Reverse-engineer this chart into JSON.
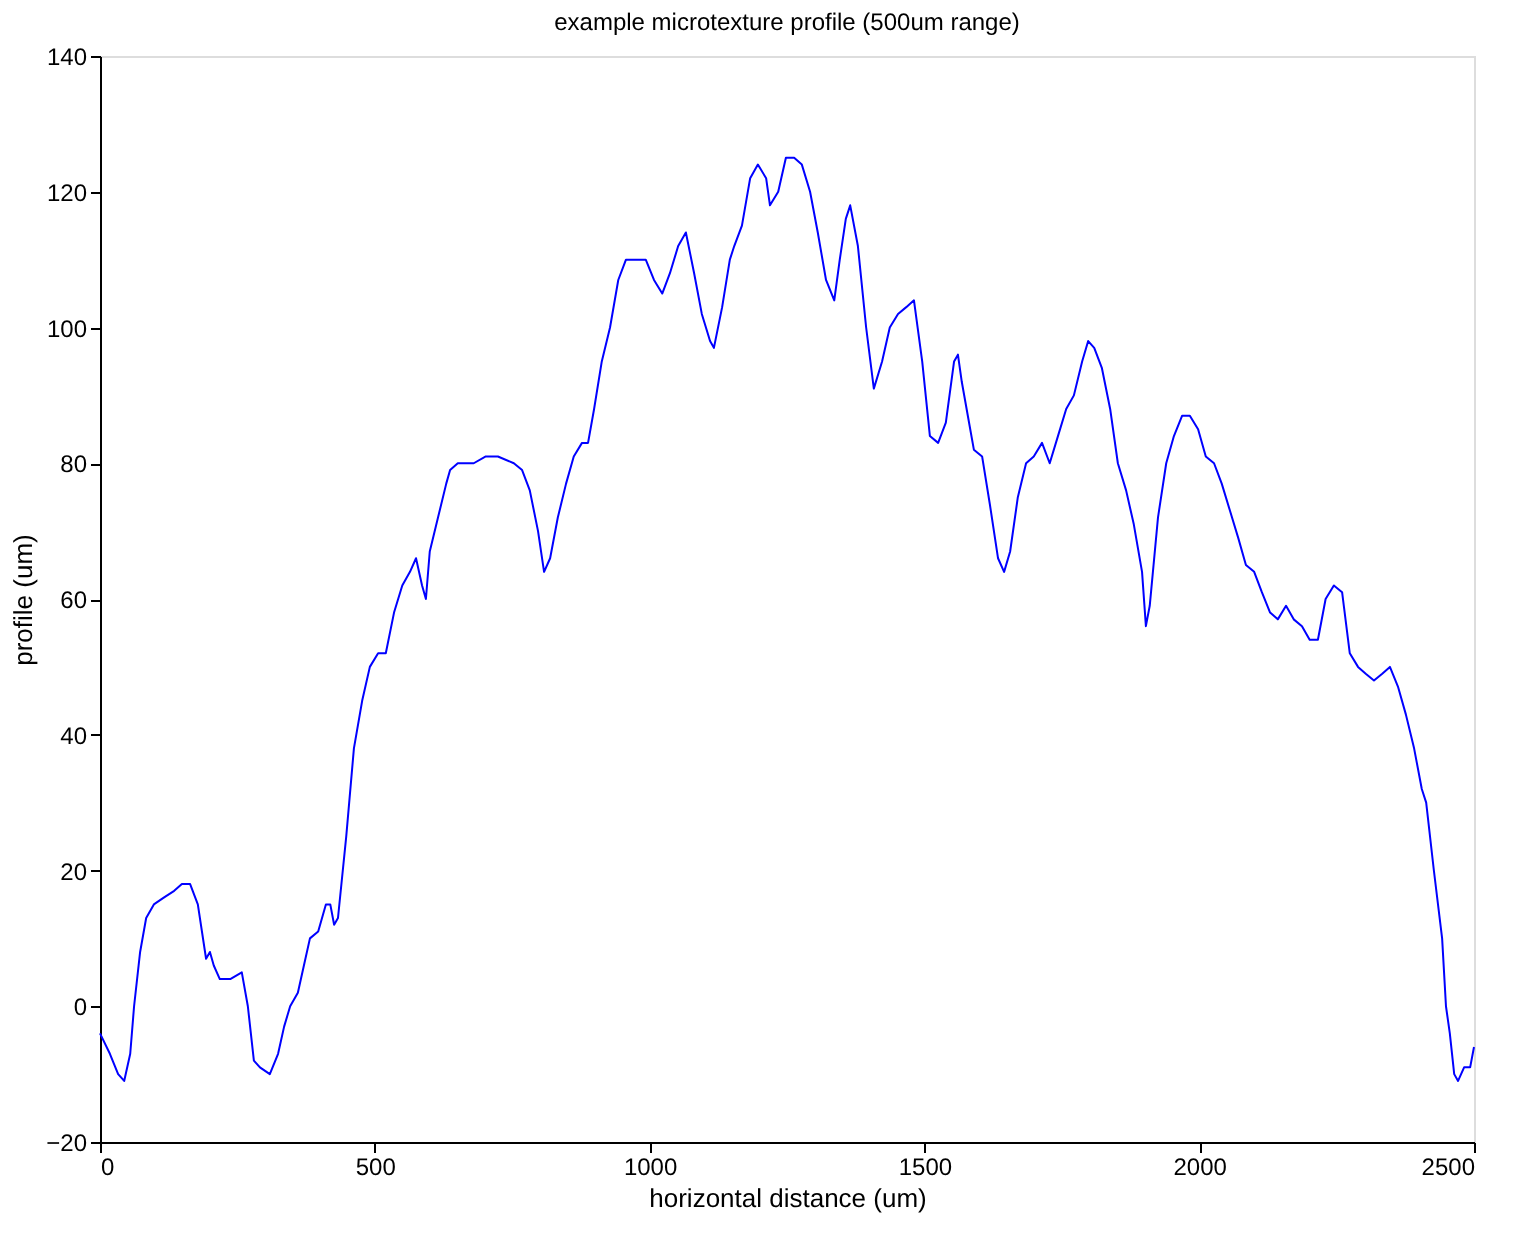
{
  "chart_data": {
    "type": "line",
    "title": "example microtexture profile (500um range)",
    "xlabel": "horizontal distance (um)",
    "ylabel": "profile (um)",
    "x": [
      0,
      18,
      33,
      44,
      55,
      62,
      73,
      84,
      98,
      116,
      135,
      149,
      164,
      178,
      193,
      200,
      207,
      218,
      237,
      258,
      269,
      280,
      291,
      309,
      324,
      335,
      346,
      360,
      371,
      382,
      397,
      411,
      419,
      426,
      433,
      448,
      462,
      477,
      491,
      506,
      520,
      535,
      550,
      564,
      575,
      586,
      593,
      600,
      615,
      630,
      637,
      651,
      680,
      702,
      724,
      753,
      768,
      782,
      797,
      808,
      819,
      833,
      848,
      862,
      877,
      888,
      899,
      913,
      928,
      943,
      957,
      972,
      993,
      1008,
      1023,
      1037,
      1052,
      1066,
      1081,
      1095,
      1110,
      1117,
      1132,
      1146,
      1154,
      1168,
      1183,
      1197,
      1212,
      1219,
      1234,
      1248,
      1263,
      1277,
      1292,
      1306,
      1321,
      1336,
      1346,
      1357,
      1365,
      1379,
      1394,
      1408,
      1423,
      1437,
      1452,
      1467,
      1481,
      1496,
      1510,
      1525,
      1539,
      1554,
      1561,
      1568,
      1579,
      1590,
      1605,
      1619,
      1634,
      1645,
      1656,
      1670,
      1685,
      1699,
      1714,
      1728,
      1743,
      1758,
      1772,
      1787,
      1798,
      1809,
      1823,
      1838,
      1852,
      1867,
      1881,
      1896,
      1903,
      1910,
      1925,
      1940,
      1954,
      1969,
      1983,
      1998,
      2012,
      2027,
      2041,
      2056,
      2071,
      2085,
      2100,
      2114,
      2129,
      2143,
      2158,
      2172,
      2187,
      2201,
      2216,
      2230,
      2245,
      2260,
      2274,
      2289,
      2303,
      2318,
      2333,
      2347,
      2362,
      2376,
      2391,
      2405,
      2413,
      2427,
      2442,
      2449,
      2456,
      2464,
      2471,
      2482,
      2493,
      2500
    ],
    "series": [
      {
        "color": "#0000ff",
        "values": [
          -4,
          -7,
          -10,
          -11,
          -7,
          0,
          8,
          13,
          15,
          16,
          17,
          18,
          18,
          15,
          7,
          8,
          6,
          4,
          4,
          5,
          0,
          -8,
          -9,
          -10,
          -7,
          -3,
          0,
          2,
          6,
          10,
          11,
          15,
          15,
          12,
          13,
          25,
          38,
          45,
          50,
          52,
          52,
          58,
          62,
          64,
          66,
          62,
          60,
          67,
          72,
          77,
          79,
          80,
          80,
          81,
          81,
          80,
          79,
          76,
          70,
          64,
          66,
          72,
          77,
          81,
          83,
          83,
          88,
          95,
          100,
          107,
          110,
          110,
          110,
          107,
          105,
          108,
          112,
          114,
          108,
          102,
          98,
          97,
          103,
          110,
          112,
          115,
          122,
          124,
          122,
          118,
          120,
          125,
          125,
          124,
          120,
          114,
          107,
          104,
          110,
          116,
          118,
          112,
          100,
          91,
          95,
          100,
          102,
          103,
          104,
          95,
          84,
          83,
          86,
          95,
          96,
          92,
          87,
          82,
          81,
          74,
          66,
          64,
          67,
          75,
          80,
          81,
          83,
          80,
          84,
          88,
          90,
          95,
          98,
          97,
          94,
          88,
          80,
          76,
          71,
          64,
          56,
          59,
          72,
          80,
          84,
          87,
          87,
          85,
          81,
          80,
          77,
          73,
          69,
          65,
          64,
          61,
          58,
          57,
          59,
          57,
          56,
          54,
          54,
          60,
          62,
          61,
          52,
          50,
          49,
          48,
          49,
          50,
          47,
          43,
          38,
          32,
          30,
          20,
          10,
          0,
          -4,
          -10,
          -11,
          -9,
          -9,
          -6
        ]
      }
    ],
    "xlim": [
      0,
      2500
    ],
    "xticks": [
      0,
      500,
      1000,
      1500,
      2000,
      2500
    ],
    "ylim": [
      -20,
      140
    ],
    "yticks": [
      -20,
      0,
      20,
      40,
      60,
      80,
      100,
      120,
      140
    ],
    "grid": false,
    "legend": false,
    "marker": "none",
    "line_style": "solid"
  }
}
